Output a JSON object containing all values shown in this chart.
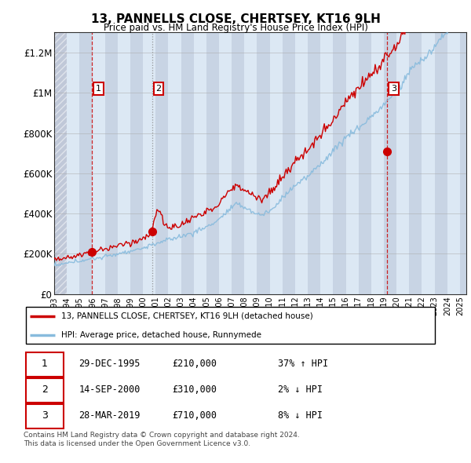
{
  "title": "13, PANNELLS CLOSE, CHERTSEY, KT16 9LH",
  "subtitle": "Price paid vs. HM Land Registry's House Price Index (HPI)",
  "ylabel_ticks": [
    "£0",
    "£200K",
    "£400K",
    "£600K",
    "£800K",
    "£1M",
    "£1.2M"
  ],
  "ytick_values": [
    0,
    200000,
    400000,
    600000,
    800000,
    1000000,
    1200000
  ],
  "ylim": [
    0,
    1300000
  ],
  "sale_dates_num": [
    1995.99,
    2000.71,
    2019.24
  ],
  "sale_prices": [
    210000,
    310000,
    710000
  ],
  "sale_labels": [
    "1",
    "2",
    "3"
  ],
  "sale_color": "#cc0000",
  "hpi_color": "#88bbdd",
  "legend_sale_label": "13, PANNELLS CLOSE, CHERTSEY, KT16 9LH (detached house)",
  "legend_hpi_label": "HPI: Average price, detached house, Runnymede",
  "table_rows": [
    [
      "1",
      "29-DEC-1995",
      "£210,000",
      "37% ↑ HPI"
    ],
    [
      "2",
      "14-SEP-2000",
      "£310,000",
      "2% ↓ HPI"
    ],
    [
      "3",
      "28-MAR-2019",
      "£710,000",
      "8% ↓ HPI"
    ]
  ],
  "footnote1": "Contains HM Land Registry data © Crown copyright and database right 2024.",
  "footnote2": "This data is licensed under the Open Government Licence v3.0.",
  "bg_hatch_color": "#c8d4e4",
  "bg_white_color": "#dce8f4",
  "bg_first_hatch": "#c0c8d8",
  "vline_colors": [
    "#cc0000",
    "#888888",
    "#cc0000"
  ],
  "vline_styles": [
    "--",
    ":",
    "--"
  ]
}
